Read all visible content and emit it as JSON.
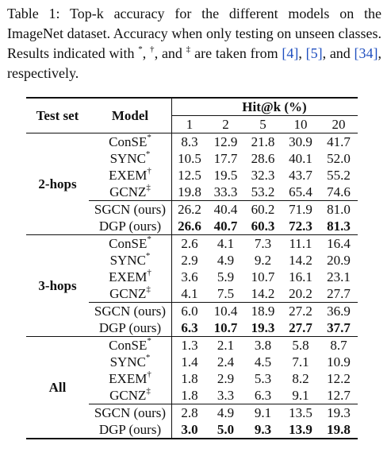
{
  "caption": {
    "p1": "Table 1: Top-k accuracy for the different models on the ImageNet dataset. Accuracy when only testing on unseen classes. Results indicated with ",
    "m1": "*",
    "p2": ", ",
    "m2": "†",
    "p3": ", and ",
    "m3": "‡",
    "p4": " are taken from ",
    "r1": "[4]",
    "p5": ", ",
    "r2": "[5]",
    "p6": ", and ",
    "r3": "[34]",
    "p7": ", respectively."
  },
  "table": {
    "header": {
      "test_set": "Test set",
      "model": "Model",
      "hitk": "Hit@k (%)",
      "k": [
        "1",
        "2",
        "5",
        "10",
        "20"
      ]
    },
    "groups": [
      {
        "name": "2-hops",
        "rows": [
          {
            "model": "ConSE",
            "mark": "*",
            "values": [
              "8.3",
              "12.9",
              "21.8",
              "30.9",
              "41.7"
            ],
            "bold": false
          },
          {
            "model": "SYNC",
            "mark": "*",
            "values": [
              "10.5",
              "17.7",
              "28.6",
              "40.1",
              "52.0"
            ],
            "bold": false
          },
          {
            "model": "EXEM",
            "mark": "†",
            "values": [
              "12.5",
              "19.5",
              "32.3",
              "43.7",
              "55.2"
            ],
            "bold": false
          },
          {
            "model": "GCNZ",
            "mark": "‡",
            "values": [
              "19.8",
              "33.3",
              "53.2",
              "65.4",
              "74.6"
            ],
            "bold": false
          },
          {
            "model": "SGCN (ours)",
            "mark": "",
            "values": [
              "26.2",
              "40.4",
              "60.2",
              "71.9",
              "81.0"
            ],
            "bold": false
          },
          {
            "model": "DGP (ours)",
            "mark": "",
            "values": [
              "26.6",
              "40.7",
              "60.3",
              "72.3",
              "81.3"
            ],
            "bold": true
          }
        ]
      },
      {
        "name": "3-hops",
        "rows": [
          {
            "model": "ConSE",
            "mark": "*",
            "values": [
              "2.6",
              "4.1",
              "7.3",
              "11.1",
              "16.4"
            ],
            "bold": false
          },
          {
            "model": "SYNC",
            "mark": "*",
            "values": [
              "2.9",
              "4.9",
              "9.2",
              "14.2",
              "20.9"
            ],
            "bold": false
          },
          {
            "model": "EXEM",
            "mark": "†",
            "values": [
              "3.6",
              "5.9",
              "10.7",
              "16.1",
              "23.1"
            ],
            "bold": false
          },
          {
            "model": "GCNZ",
            "mark": "‡",
            "values": [
              "4.1",
              "7.5",
              "14.2",
              "20.2",
              "27.7"
            ],
            "bold": false
          },
          {
            "model": "SGCN (ours)",
            "mark": "",
            "values": [
              "6.0",
              "10.4",
              "18.9",
              "27.2",
              "36.9"
            ],
            "bold": false
          },
          {
            "model": "DGP (ours)",
            "mark": "",
            "values": [
              "6.3",
              "10.7",
              "19.3",
              "27.7",
              "37.7"
            ],
            "bold": true
          }
        ]
      },
      {
        "name": "All",
        "rows": [
          {
            "model": "ConSE",
            "mark": "*",
            "values": [
              "1.3",
              "2.1",
              "3.8",
              "5.8",
              "8.7"
            ],
            "bold": false
          },
          {
            "model": "SYNC",
            "mark": "*",
            "values": [
              "1.4",
              "2.4",
              "4.5",
              "7.1",
              "10.9"
            ],
            "bold": false
          },
          {
            "model": "EXEM",
            "mark": "†",
            "values": [
              "1.8",
              "2.9",
              "5.3",
              "8.2",
              "12.2"
            ],
            "bold": false
          },
          {
            "model": "GCNZ",
            "mark": "‡",
            "values": [
              "1.8",
              "3.3",
              "6.3",
              "9.1",
              "12.7"
            ],
            "bold": false
          },
          {
            "model": "SGCN (ours)",
            "mark": "",
            "values": [
              "2.8",
              "4.9",
              "9.1",
              "13.5",
              "19.3"
            ],
            "bold": false
          },
          {
            "model": "DGP (ours)",
            "mark": "",
            "values": [
              "3.0",
              "5.0",
              "9.3",
              "13.9",
              "19.8"
            ],
            "bold": true
          }
        ]
      }
    ]
  }
}
